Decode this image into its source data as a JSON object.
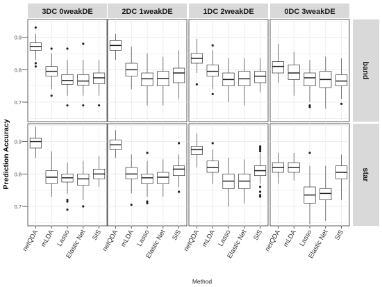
{
  "chart_data": {
    "type": "boxplot",
    "xlabel": "Method",
    "ylabel": "Prediction Accuracy",
    "columns": [
      "3DC 0weakDE",
      "2DC 1weakDE",
      "1DC 2weakDE",
      "0DC 3weakDE"
    ],
    "rows": [
      "band",
      "star"
    ],
    "categories": [
      "netQDA",
      "mLDA",
      "Lasso",
      "Elastic Net",
      "SIS"
    ],
    "y_ticks": [
      0.7,
      0.8,
      0.9
    ],
    "ylim": [
      0.64,
      0.955
    ],
    "grid": true,
    "panels": [
      {
        "column": "3DC 0weakDE",
        "row": "band",
        "boxes": [
          {
            "category": "netQDA",
            "min": 0.83,
            "q1": 0.86,
            "median": 0.872,
            "q3": 0.883,
            "max": 0.91,
            "outliers": [
              0.93,
              0.82,
              0.81
            ]
          },
          {
            "category": "mLDA",
            "min": 0.74,
            "q1": 0.78,
            "median": 0.795,
            "q3": 0.81,
            "max": 0.85,
            "outliers": [
              0.865,
              0.72
            ]
          },
          {
            "category": "Lasso",
            "min": 0.72,
            "q1": 0.755,
            "median": 0.767,
            "q3": 0.785,
            "max": 0.83,
            "outliers": [
              0.865,
              0.69
            ]
          },
          {
            "category": "Elastic Net",
            "min": 0.72,
            "q1": 0.752,
            "median": 0.765,
            "q3": 0.785,
            "max": 0.83,
            "outliers": [
              0.88,
              0.69
            ]
          },
          {
            "category": "SIS",
            "min": 0.72,
            "q1": 0.757,
            "median": 0.775,
            "q3": 0.79,
            "max": 0.83,
            "outliers": [
              0.69
            ]
          }
        ]
      },
      {
        "column": "2DC 1weakDE",
        "row": "band",
        "boxes": [
          {
            "category": "netQDA",
            "min": 0.83,
            "q1": 0.86,
            "median": 0.875,
            "q3": 0.89,
            "max": 0.91,
            "outliers": []
          },
          {
            "category": "mLDA",
            "min": 0.74,
            "q1": 0.78,
            "median": 0.8,
            "q3": 0.82,
            "max": 0.87,
            "outliers": []
          },
          {
            "category": "Lasso",
            "min": 0.69,
            "q1": 0.75,
            "median": 0.772,
            "q3": 0.79,
            "max": 0.85,
            "outliers": []
          },
          {
            "category": "Elastic Net",
            "min": 0.69,
            "q1": 0.75,
            "median": 0.773,
            "q3": 0.795,
            "max": 0.84,
            "outliers": []
          },
          {
            "category": "SIS",
            "min": 0.71,
            "q1": 0.76,
            "median": 0.79,
            "q3": 0.805,
            "max": 0.86,
            "outliers": []
          }
        ]
      },
      {
        "column": "1DC 2weakDE",
        "row": "band",
        "boxes": [
          {
            "category": "netQDA",
            "min": 0.79,
            "q1": 0.82,
            "median": 0.835,
            "q3": 0.85,
            "max": 0.895,
            "outliers": [
              0.755
            ]
          },
          {
            "category": "mLDA",
            "min": 0.74,
            "q1": 0.78,
            "median": 0.795,
            "q3": 0.815,
            "max": 0.86,
            "outliers": [
              0.875,
              0.725
            ]
          },
          {
            "category": "Lasso",
            "min": 0.7,
            "q1": 0.75,
            "median": 0.77,
            "q3": 0.79,
            "max": 0.835,
            "outliers": []
          },
          {
            "category": "Elastic Net",
            "min": 0.69,
            "q1": 0.75,
            "median": 0.772,
            "q3": 0.795,
            "max": 0.835,
            "outliers": []
          },
          {
            "category": "SIS",
            "min": 0.73,
            "q1": 0.76,
            "median": 0.78,
            "q3": 0.795,
            "max": 0.835,
            "outliers": []
          }
        ]
      },
      {
        "column": "0DC 3weakDE",
        "row": "band",
        "boxes": [
          {
            "category": "netQDA",
            "min": 0.76,
            "q1": 0.79,
            "median": 0.81,
            "q3": 0.825,
            "max": 0.88,
            "outliers": []
          },
          {
            "category": "mLDA",
            "min": 0.72,
            "q1": 0.77,
            "median": 0.79,
            "q3": 0.815,
            "max": 0.855,
            "outliers": []
          },
          {
            "category": "Lasso",
            "min": 0.7,
            "q1": 0.75,
            "median": 0.775,
            "q3": 0.79,
            "max": 0.83,
            "outliers": [
              0.69,
              0.685
            ]
          },
          {
            "category": "Elastic Net",
            "min": 0.68,
            "q1": 0.745,
            "median": 0.77,
            "q3": 0.795,
            "max": 0.84,
            "outliers": []
          },
          {
            "category": "SIS",
            "min": 0.71,
            "q1": 0.75,
            "median": 0.765,
            "q3": 0.785,
            "max": 0.835,
            "outliers": [
              0.695
            ]
          }
        ]
      },
      {
        "column": "3DC 0weakDE",
        "row": "star",
        "boxes": [
          {
            "category": "netQDA",
            "min": 0.85,
            "q1": 0.88,
            "median": 0.9,
            "q3": 0.91,
            "max": 0.945,
            "outliers": []
          },
          {
            "category": "mLDA",
            "min": 0.73,
            "q1": 0.77,
            "median": 0.79,
            "q3": 0.81,
            "max": 0.87,
            "outliers": []
          },
          {
            "category": "Lasso",
            "min": 0.74,
            "q1": 0.775,
            "median": 0.788,
            "q3": 0.8,
            "max": 0.835,
            "outliers": [
              0.72,
              0.715,
              0.69
            ]
          },
          {
            "category": "Elastic Net",
            "min": 0.72,
            "q1": 0.765,
            "median": 0.785,
            "q3": 0.8,
            "max": 0.84,
            "outliers": [
              0.7
            ]
          },
          {
            "category": "SIS",
            "min": 0.76,
            "q1": 0.785,
            "median": 0.8,
            "q3": 0.815,
            "max": 0.855,
            "outliers": []
          }
        ]
      },
      {
        "column": "2DC 1weakDE",
        "row": "star",
        "boxes": [
          {
            "category": "netQDA",
            "min": 0.85,
            "q1": 0.875,
            "median": 0.89,
            "q3": 0.905,
            "max": 0.935,
            "outliers": []
          },
          {
            "category": "mLDA",
            "min": 0.74,
            "q1": 0.785,
            "median": 0.8,
            "q3": 0.82,
            "max": 0.86,
            "outliers": [
              0.705
            ]
          },
          {
            "category": "Lasso",
            "min": 0.73,
            "q1": 0.77,
            "median": 0.788,
            "q3": 0.8,
            "max": 0.84,
            "outliers": [
              0.865,
              0.715,
              0.71
            ]
          },
          {
            "category": "Elastic Net",
            "min": 0.73,
            "q1": 0.77,
            "median": 0.79,
            "q3": 0.805,
            "max": 0.845,
            "outliers": []
          },
          {
            "category": "SIS",
            "min": 0.76,
            "q1": 0.795,
            "median": 0.815,
            "q3": 0.825,
            "max": 0.86,
            "outliers": [
              0.895,
              0.745
            ]
          }
        ]
      },
      {
        "column": "1DC 2weakDE",
        "row": "star",
        "boxes": [
          {
            "category": "netQDA",
            "min": 0.82,
            "q1": 0.86,
            "median": 0.875,
            "q3": 0.885,
            "max": 0.925,
            "outliers": []
          },
          {
            "category": "mLDA",
            "min": 0.77,
            "q1": 0.805,
            "median": 0.82,
            "q3": 0.84,
            "max": 0.875,
            "outliers": [
              0.895
            ]
          },
          {
            "category": "Lasso",
            "min": 0.7,
            "q1": 0.755,
            "median": 0.778,
            "q3": 0.8,
            "max": 0.85,
            "outliers": []
          },
          {
            "category": "Elastic Net",
            "min": 0.71,
            "q1": 0.755,
            "median": 0.778,
            "q3": 0.8,
            "max": 0.845,
            "outliers": []
          },
          {
            "category": "SIS",
            "min": 0.77,
            "q1": 0.795,
            "median": 0.81,
            "q3": 0.825,
            "max": 0.865,
            "outliers": [
              0.885,
              0.88,
              0.875,
              0.87,
              0.76,
              0.745,
              0.735,
              0.73
            ]
          }
        ]
      },
      {
        "column": "0DC 3weakDE",
        "row": "star",
        "boxes": [
          {
            "category": "netQDA",
            "min": 0.77,
            "q1": 0.805,
            "median": 0.82,
            "q3": 0.835,
            "max": 0.865,
            "outliers": []
          },
          {
            "category": "mLDA",
            "min": 0.78,
            "q1": 0.805,
            "median": 0.82,
            "q3": 0.835,
            "max": 0.865,
            "outliers": []
          },
          {
            "category": "Lasso",
            "min": 0.645,
            "q1": 0.71,
            "median": 0.735,
            "q3": 0.76,
            "max": 0.825,
            "outliers": [
              0.865
            ]
          },
          {
            "category": "Elastic Net",
            "min": 0.655,
            "q1": 0.72,
            "median": 0.74,
            "q3": 0.755,
            "max": 0.825,
            "outliers": []
          },
          {
            "category": "SIS",
            "min": 0.72,
            "q1": 0.785,
            "median": 0.805,
            "q3": 0.825,
            "max": 0.86,
            "outliers": []
          }
        ]
      }
    ]
  }
}
